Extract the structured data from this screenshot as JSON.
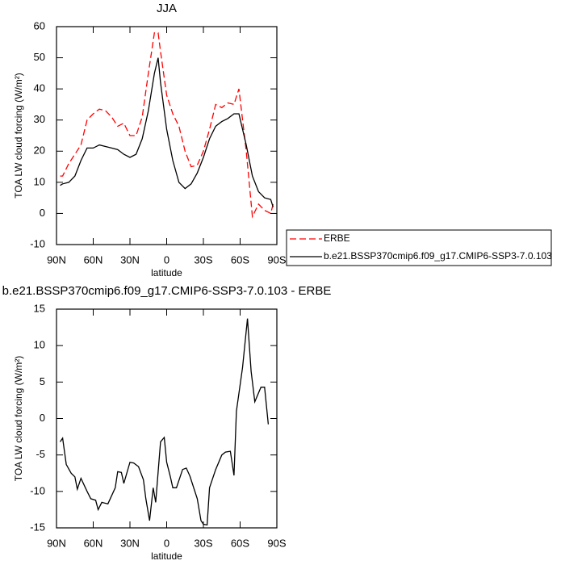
{
  "chart_data": [
    {
      "type": "line",
      "title": "JJA",
      "xlabel": "latitude",
      "ylabel": "TOA LW cloud forcing (W/m²)",
      "x": [
        87,
        85,
        80,
        75,
        70,
        65,
        60,
        55,
        50,
        45,
        40,
        35,
        30,
        25,
        20,
        15,
        10,
        7,
        5,
        0,
        -5,
        -10,
        -15,
        -20,
        -25,
        -30,
        -35,
        -40,
        -45,
        -50,
        -55,
        -59,
        -65,
        -70,
        -75,
        -80,
        -85,
        -87
      ],
      "xlim": [
        90,
        -90
      ],
      "xticks": [
        {
          "value": 90,
          "label": "90N"
        },
        {
          "value": 60,
          "label": "60N"
        },
        {
          "value": 30,
          "label": "30N"
        },
        0,
        {
          "value": -30,
          "label": "30S"
        },
        {
          "value": -60,
          "label": "60S"
        },
        {
          "value": -90,
          "label": "90S"
        }
      ],
      "ylim": [
        -10,
        60
      ],
      "yticks": [
        -10,
        0,
        10,
        20,
        30,
        40,
        50,
        60
      ],
      "legend": "right",
      "series": [
        {
          "name": "ERBE",
          "color": "#ff0000",
          "style": "dashed",
          "values": [
            12,
            12,
            16,
            19,
            22,
            30,
            32,
            33.5,
            33,
            31,
            28,
            29,
            25,
            25,
            31,
            45,
            58,
            58,
            52,
            38,
            32,
            28,
            20,
            15,
            15.5,
            20,
            27,
            35,
            34,
            35.5,
            35,
            40,
            20,
            -1,
            3,
            1,
            0,
            3
          ]
        },
        {
          "name": "b.e21.BSSP370cmip6.f09_g17.CMIP6-SSP3-7.0.103",
          "color": "#000000",
          "style": "solid",
          "values": [
            9,
            9.5,
            10,
            12,
            17,
            21,
            21,
            22,
            21.5,
            21,
            20.5,
            19,
            18,
            19,
            24,
            33,
            45,
            50,
            42,
            27,
            17,
            10,
            8,
            9.5,
            13,
            18,
            24,
            28,
            29.5,
            30.5,
            32,
            32,
            22,
            12,
            7,
            5,
            4.5,
            2
          ]
        }
      ]
    },
    {
      "type": "line",
      "title": "b.e21.BSSP370cmip6.f09_g17.CMIP6-SSP3-7.0.103 - ERBE",
      "xlabel": "latitude",
      "ylabel": "TOA LW cloud forcing (W/m²)",
      "x": [
        87,
        85,
        82,
        78,
        75,
        73,
        70,
        65,
        62,
        58,
        56,
        53,
        48,
        42,
        40,
        37,
        35,
        30,
        27,
        23,
        19,
        17,
        14,
        11,
        9,
        5,
        2,
        0,
        -3,
        -5,
        -8,
        -13,
        -16,
        -19,
        -25,
        -28,
        -30,
        -33,
        -35,
        -40,
        -45,
        -48,
        -52,
        -55,
        -57,
        -62,
        -66,
        -69,
        -72,
        -77,
        -80,
        -83
      ],
      "xlim": [
        90,
        -90
      ],
      "xticks": [
        {
          "value": 90,
          "label": "90N"
        },
        {
          "value": 60,
          "label": "60N"
        },
        {
          "value": 30,
          "label": "30N"
        },
        0,
        {
          "value": -30,
          "label": "30S"
        },
        {
          "value": -60,
          "label": "60S"
        },
        {
          "value": -90,
          "label": "90S"
        }
      ],
      "ylim": [
        -15,
        15
      ],
      "yticks": [
        -15,
        -10,
        -5,
        0,
        5,
        10,
        15
      ],
      "series": [
        {
          "color": "#000000",
          "style": "solid",
          "values": [
            -3.2,
            -2.7,
            -6.3,
            -7.5,
            -8,
            -9.7,
            -8.2,
            -10,
            -11,
            -11.2,
            -12.5,
            -11.5,
            -11.7,
            -9.5,
            -7.3,
            -7.4,
            -8.9,
            -6,
            -6.1,
            -6.6,
            -8.4,
            -11,
            -14,
            -9.5,
            -11.5,
            -3.2,
            -2.6,
            -6,
            -8,
            -9.5,
            -9.5,
            -7,
            -6.8,
            -7.9,
            -11,
            -14,
            -14.5,
            -14.6,
            -9.5,
            -7,
            -5,
            -4.6,
            -4.5,
            -7.8,
            1,
            7,
            13.7,
            6.5,
            2.3,
            4.3,
            4.3,
            -0.8
          ]
        }
      ]
    }
  ]
}
